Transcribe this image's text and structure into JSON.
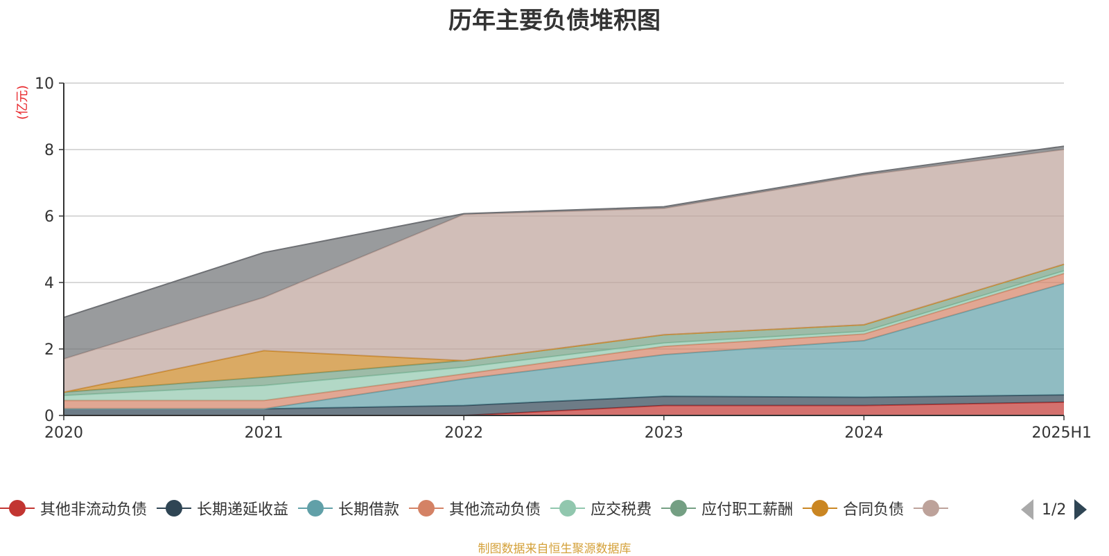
{
  "title": "历年主要负债堆积图",
  "unit_label": "(亿元)",
  "source_note": "制图数据来自恒生聚源数据库",
  "pager": {
    "text": "1/2"
  },
  "chart_data": {
    "type": "area",
    "stacked": true,
    "categories": [
      "2020",
      "2021",
      "2022",
      "2023",
      "2024",
      "2025H1"
    ],
    "ylim": [
      0,
      10
    ],
    "yticks": [
      "0",
      "2",
      "4",
      "6",
      "8",
      "10"
    ],
    "grid": true,
    "legend_position": "bottom",
    "series": [
      {
        "name": "其他非流动负债",
        "color": "#c23531",
        "values": [
          0,
          0,
          0,
          0.3,
          0.3,
          0.4
        ]
      },
      {
        "name": "长期递延收益",
        "color": "#2f4554",
        "values": [
          0.2,
          0.2,
          0.3,
          0.28,
          0.25,
          0.22
        ]
      },
      {
        "name": "长期借款",
        "color": "#61a0a8",
        "values": [
          0,
          0,
          0.8,
          1.25,
          1.7,
          3.35
        ]
      },
      {
        "name": "其他流动负债",
        "color": "#d48265",
        "values": [
          0.25,
          0.25,
          0.15,
          0.25,
          0.2,
          0.3
        ]
      },
      {
        "name": "应交税费",
        "color": "#91c7ae",
        "values": [
          0.15,
          0.45,
          0.2,
          0.1,
          0.08,
          0.08
        ]
      },
      {
        "name": "应付职工薪酬",
        "color": "#749f83",
        "values": [
          0.1,
          0.25,
          0.2,
          0.25,
          0.2,
          0.2
        ]
      },
      {
        "name": "合同负债",
        "color": "#ca8622",
        "values": [
          0,
          0.8,
          0,
          0,
          0,
          0
        ]
      },
      {
        "name": "",
        "color": "#bda29a",
        "values": [
          1.0,
          1.6,
          4.4,
          3.8,
          4.5,
          3.45
        ]
      },
      {
        "name": "",
        "color": "#6e7074",
        "values": [
          1.25,
          1.35,
          0.02,
          0.05,
          0.05,
          0.1
        ]
      }
    ]
  }
}
